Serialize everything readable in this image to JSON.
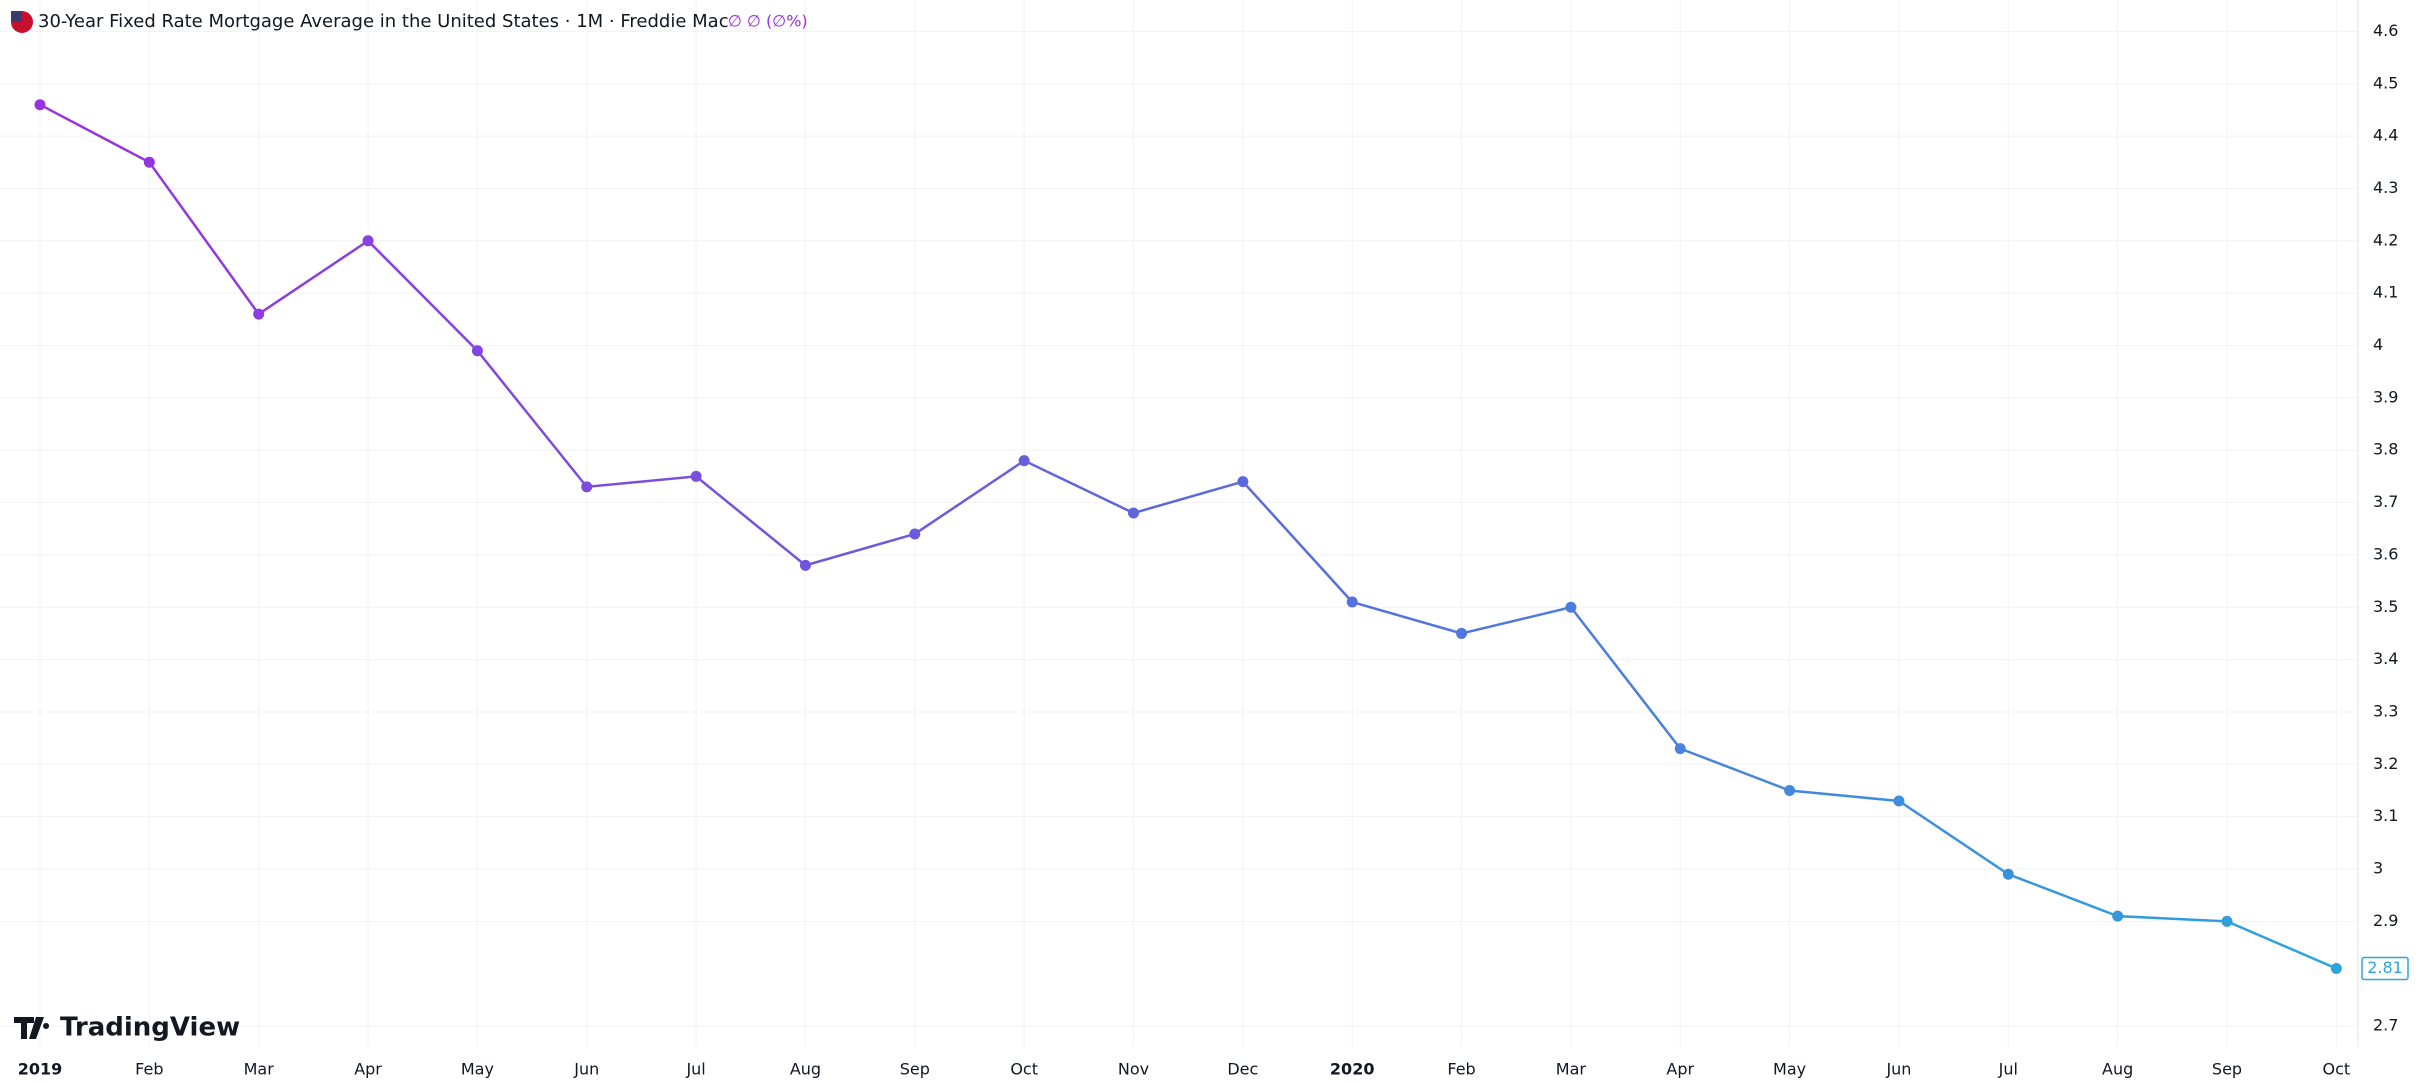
{
  "chart_data": {
    "type": "line",
    "title": "30-Year Fixed Rate Mortgage Average in the United States · 1M · Freddie Mac",
    "legend_values": "∅ ∅ (∅%)",
    "brand": "TradingView",
    "categories": [
      "2019",
      "Feb",
      "Mar",
      "Apr",
      "May",
      "Jun",
      "Jul",
      "Aug",
      "Sep",
      "Oct",
      "Nov",
      "Dec",
      "2020",
      "Feb",
      "Mar",
      "Apr",
      "May",
      "Jun",
      "Jul",
      "Aug",
      "Sep",
      "Oct"
    ],
    "series": [
      {
        "colors": [
          "#9c2fe0",
          "#5d67de",
          "#2aa6dc"
        ],
        "values": [
          4.46,
          4.35,
          4.06,
          4.2,
          3.99,
          3.73,
          3.75,
          3.58,
          3.64,
          3.78,
          3.68,
          3.74,
          3.51,
          3.45,
          3.5,
          3.23,
          3.15,
          3.13,
          2.99,
          2.91,
          2.9,
          2.81
        ]
      }
    ],
    "ylim": [
      2.66,
      4.66
    ],
    "yticks": [
      2.7,
      2.9,
      3,
      3.1,
      3.2,
      3.3,
      3.4,
      3.5,
      3.6,
      3.7,
      3.8,
      3.9,
      4,
      4.1,
      4.2,
      4.3,
      4.4,
      4.5,
      4.6
    ],
    "grid": true
  }
}
